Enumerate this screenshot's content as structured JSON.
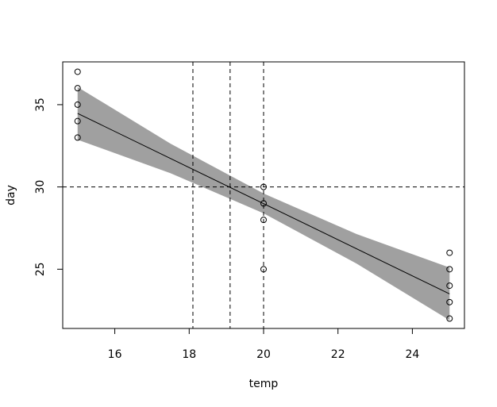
{
  "chart_data": {
    "type": "scatter",
    "x_label": "temp",
    "y_label": "day",
    "x": [
      15,
      15,
      15,
      15,
      15,
      20,
      20,
      20,
      20,
      25,
      25,
      25,
      25,
      25
    ],
    "values": [
      33,
      34,
      35,
      36,
      37,
      30,
      29,
      28,
      25,
      22,
      23,
      24,
      25,
      26
    ],
    "fit": {
      "x": [
        15,
        25
      ],
      "values": [
        34.47,
        23.5
      ]
    },
    "band": {
      "x": [
        15,
        17.5,
        20,
        22.5,
        25
      ],
      "upper": [
        36.07,
        32.63,
        29.6,
        27.14,
        25.1
      ],
      "lower": [
        32.87,
        30.83,
        28.4,
        25.34,
        21.9
      ],
      "color": "#a0a0a0"
    },
    "vlines": [
      18.1,
      19.1,
      20
    ],
    "hlines": [
      30
    ],
    "xlim": [
      14.6,
      25.4
    ],
    "ylim": [
      21.4,
      37.6
    ],
    "xticks": [
      16,
      18,
      20,
      22,
      24
    ],
    "yticks": [
      25,
      30,
      35
    ]
  }
}
